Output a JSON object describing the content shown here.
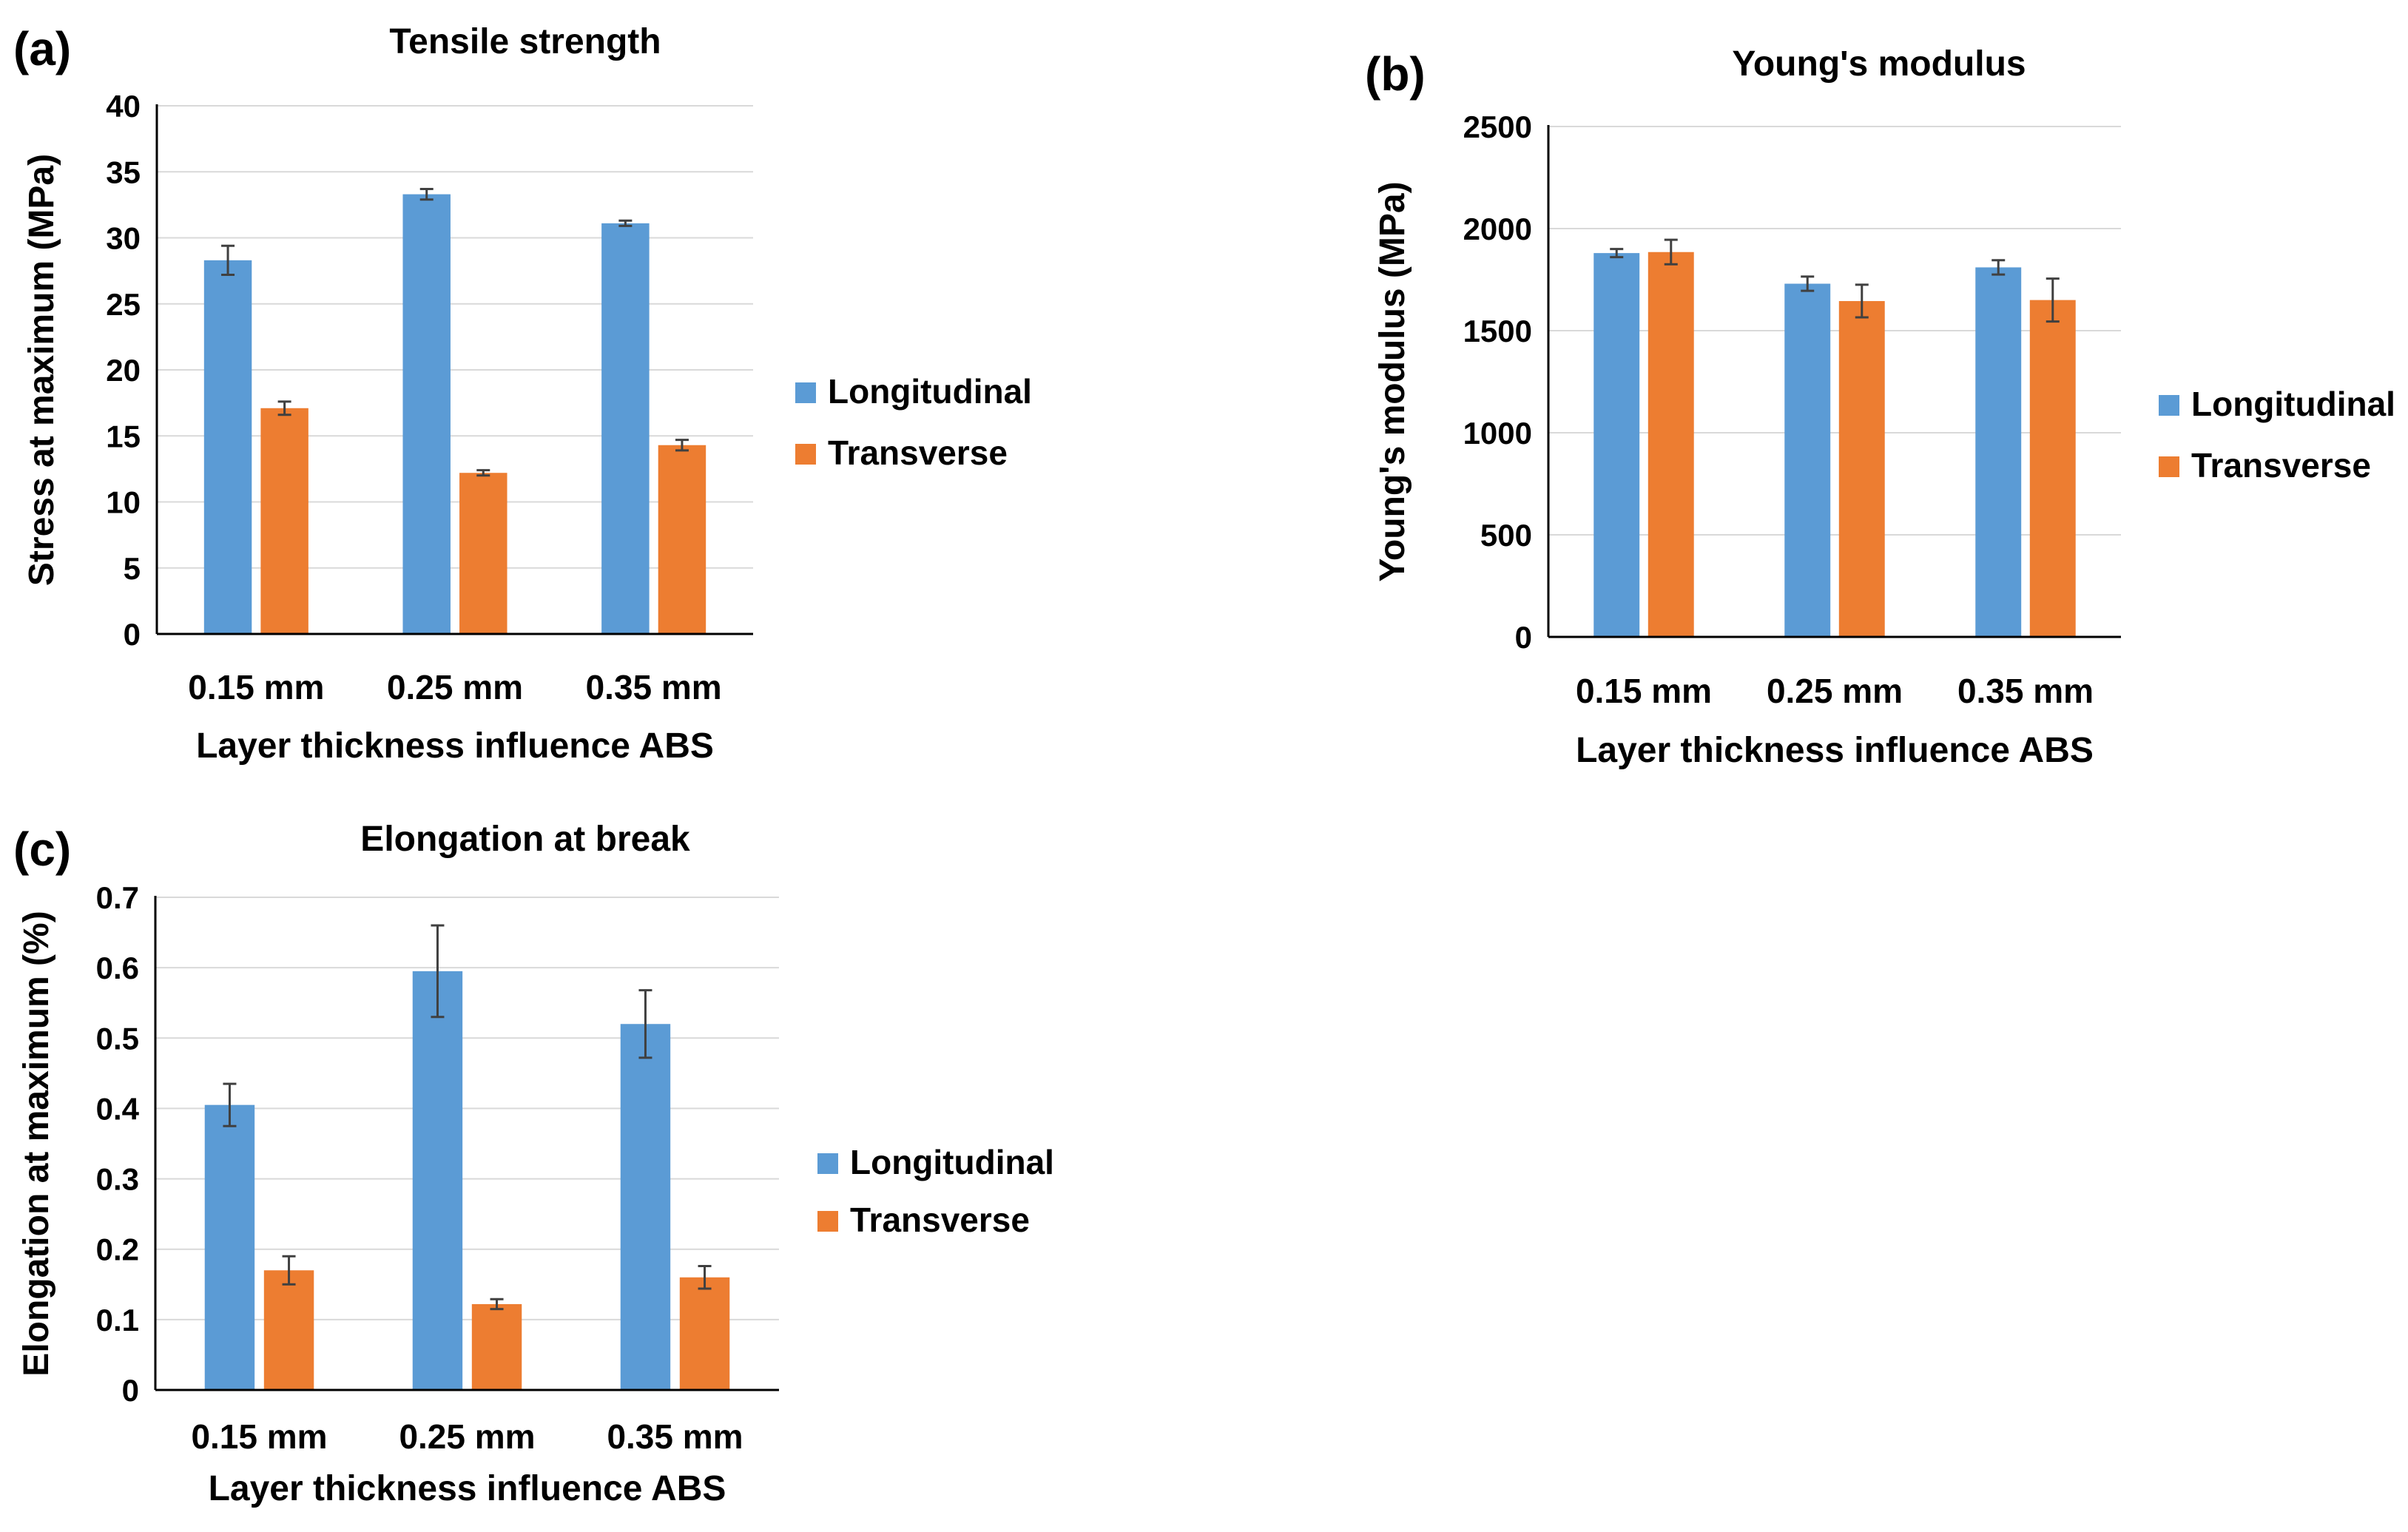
{
  "colors": {
    "longitudinal": "#5b9bd5",
    "transverse": "#ed7d31"
  },
  "chart_data": [
    {
      "type": "bar",
      "panel": "(a)",
      "title": "Tensile strength",
      "categories": [
        "0.15 mm",
        "0.25 mm",
        "0.35 mm"
      ],
      "series": [
        {
          "name": "Longitudinal",
          "values": [
            28.3,
            33.3,
            31.1
          ],
          "errors": [
            1.1,
            0.4,
            0.2
          ]
        },
        {
          "name": "Transverse",
          "values": [
            17.1,
            12.2,
            14.3
          ],
          "errors": [
            0.5,
            0.2,
            0.4
          ]
        }
      ],
      "xlabel": "Layer thickness influence ABS",
      "ylabel": "Stress at maximum (MPa)",
      "ylim": [
        0,
        40
      ],
      "yticks": [
        "0",
        "5",
        "10",
        "15",
        "20",
        "25",
        "30",
        "35",
        "40"
      ],
      "legend": "right"
    },
    {
      "type": "bar",
      "panel": "(b)",
      "title": "Young's modulus",
      "categories": [
        "0.15 mm",
        "0.25 mm",
        "0.35 mm"
      ],
      "series": [
        {
          "name": "Longitudinal",
          "values": [
            1880,
            1730,
            1810
          ],
          "errors": [
            20,
            35,
            35
          ]
        },
        {
          "name": "Transverse",
          "values": [
            1885,
            1645,
            1650
          ],
          "errors": [
            60,
            80,
            105
          ]
        }
      ],
      "xlabel": "Layer thickness influence ABS",
      "ylabel": "Young's modulus (MPa)",
      "ylim": [
        0,
        2500
      ],
      "yticks": [
        "0",
        "500",
        "1000",
        "1500",
        "2000",
        "2500"
      ],
      "legend": "right"
    },
    {
      "type": "bar",
      "panel": "(c)",
      "title": "Elongation at break",
      "categories": [
        "0.15 mm",
        "0.25 mm",
        "0.35 mm"
      ],
      "series": [
        {
          "name": "Longitudinal",
          "values": [
            0.405,
            0.595,
            0.52
          ],
          "errors": [
            0.03,
            0.065,
            0.048
          ]
        },
        {
          "name": "Transverse",
          "values": [
            0.17,
            0.122,
            0.16
          ],
          "errors": [
            0.02,
            0.007,
            0.016
          ]
        }
      ],
      "xlabel": "Layer thickness influence ABS",
      "ylabel": "Elongation at maximum (%)",
      "ylim": [
        0,
        0.7
      ],
      "yticks": [
        "0",
        "0.1",
        "0.2",
        "0.3",
        "0.4",
        "0.5",
        "0.6",
        "0.7"
      ],
      "legend": "right"
    }
  ]
}
